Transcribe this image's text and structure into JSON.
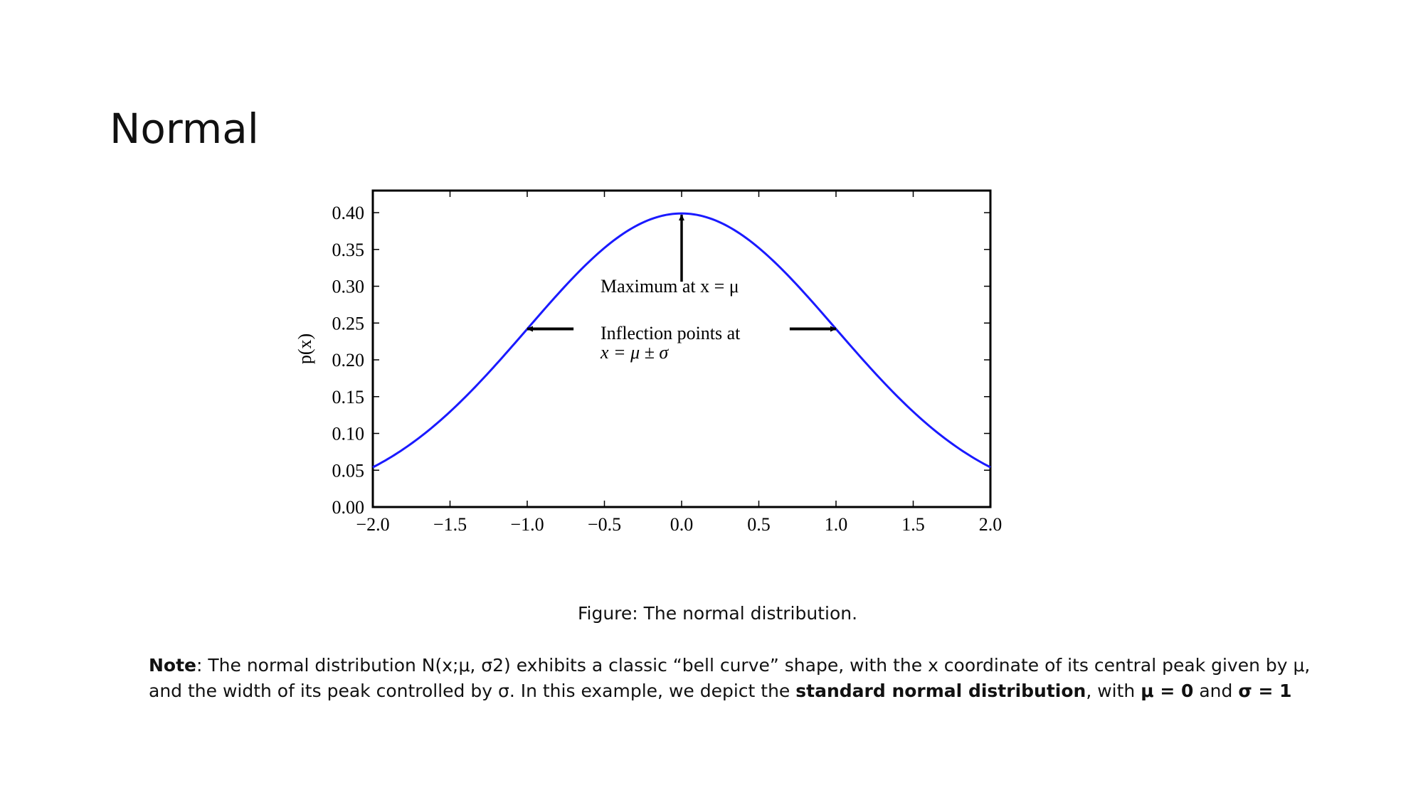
{
  "slide": {
    "title": "Normal",
    "caption": "Figure: The normal distribution."
  },
  "note": {
    "label": "Note",
    "text1": ": The normal distribution N(x;μ, σ2) exhibits a classic “bell curve” shape, with the x coordinate of its central peak given by μ, and the width of its peak controlled by σ. In this example, we depict the ",
    "bold1": "standard normal distribution",
    "text2": ", with ",
    "bold2": "μ = 0",
    "text3": " and ",
    "bold3": "σ = 1"
  },
  "chart_data": {
    "type": "line",
    "title": "",
    "xlabel": "",
    "ylabel": "p(x)",
    "xlim": [
      -2.0,
      2.0
    ],
    "ylim": [
      0.0,
      0.43
    ],
    "xticks": [
      -2.0,
      -1.5,
      -1.0,
      -0.5,
      0.0,
      0.5,
      1.0,
      1.5,
      2.0
    ],
    "xtick_labels": [
      "−2.0",
      "−1.5",
      "−1.0",
      "−0.5",
      "0.0",
      "0.5",
      "1.0",
      "1.5",
      "2.0"
    ],
    "yticks": [
      0.0,
      0.05,
      0.1,
      0.15,
      0.2,
      0.25,
      0.3,
      0.35,
      0.4
    ],
    "ytick_labels": [
      "0.00",
      "0.05",
      "0.10",
      "0.15",
      "0.20",
      "0.25",
      "0.30",
      "0.35",
      "0.40"
    ],
    "grid": false,
    "series": [
      {
        "color": "#1a1aff",
        "function": "standard normal pdf",
        "x": [
          -2.0,
          -1.75,
          -1.5,
          -1.25,
          -1.0,
          -0.75,
          -0.5,
          -0.25,
          0.0,
          0.25,
          0.5,
          0.75,
          1.0,
          1.25,
          1.5,
          1.75,
          2.0
        ],
        "y": [
          0.054,
          0.086,
          0.13,
          0.183,
          0.242,
          0.301,
          0.352,
          0.387,
          0.399,
          0.387,
          0.352,
          0.301,
          0.242,
          0.183,
          0.13,
          0.086,
          0.054
        ]
      }
    ],
    "annotations": [
      {
        "text": "Maximum at x = μ",
        "arrow_to": [
          0.0,
          0.399
        ],
        "arrow_from": [
          0.0,
          0.31
        ]
      },
      {
        "text_line1": "Inflection points at",
        "text_line2": "x = μ ± σ",
        "arrows": [
          {
            "from": [
              -0.7,
              0.242
            ],
            "to": [
              -1.0,
              0.242
            ]
          },
          {
            "from": [
              0.7,
              0.242
            ],
            "to": [
              1.0,
              0.242
            ]
          }
        ]
      }
    ]
  }
}
